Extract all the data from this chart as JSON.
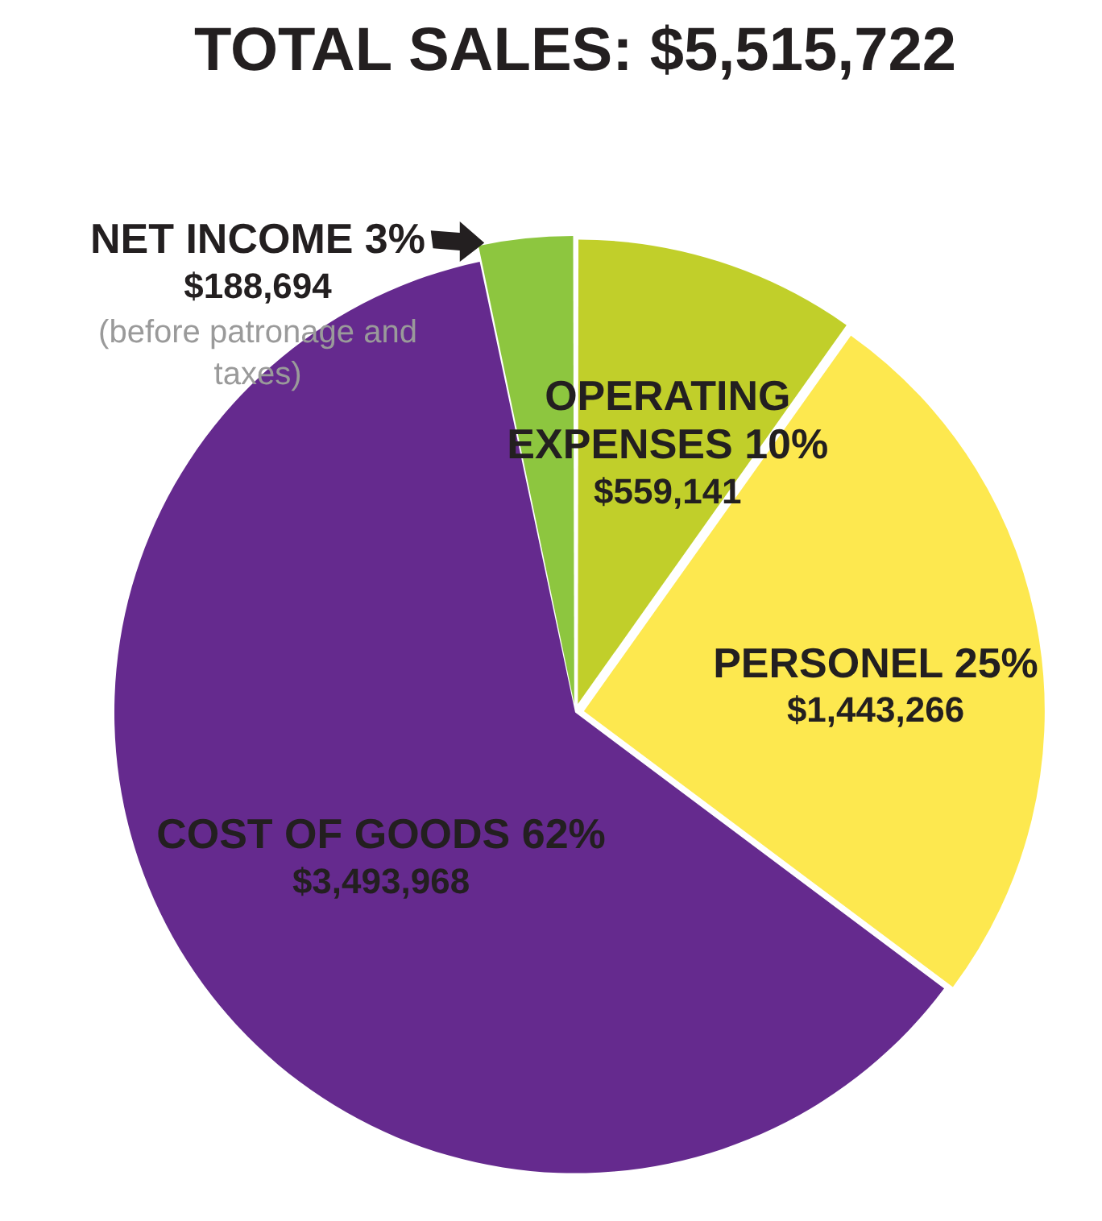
{
  "chart_data": {
    "type": "pie",
    "title": "TOTAL SALES: $5,515,722",
    "categories": [
      "NET INCOME 3%",
      "OPERATING EXPENSES 10%",
      "PERSONEL 25%",
      "COST OF GOODS 62%"
    ],
    "values": [
      188694,
      559141,
      1443266,
      3493968
    ],
    "value_labels": [
      "$188,694",
      "$559,141",
      "$1,443,266",
      "$3,493,968"
    ],
    "colors": [
      "#8dc63f",
      "#c1cf2a",
      "#fde84f",
      "#652a8e"
    ],
    "annotations": [
      "(before patronage and taxes)"
    ],
    "legend": false
  }
}
